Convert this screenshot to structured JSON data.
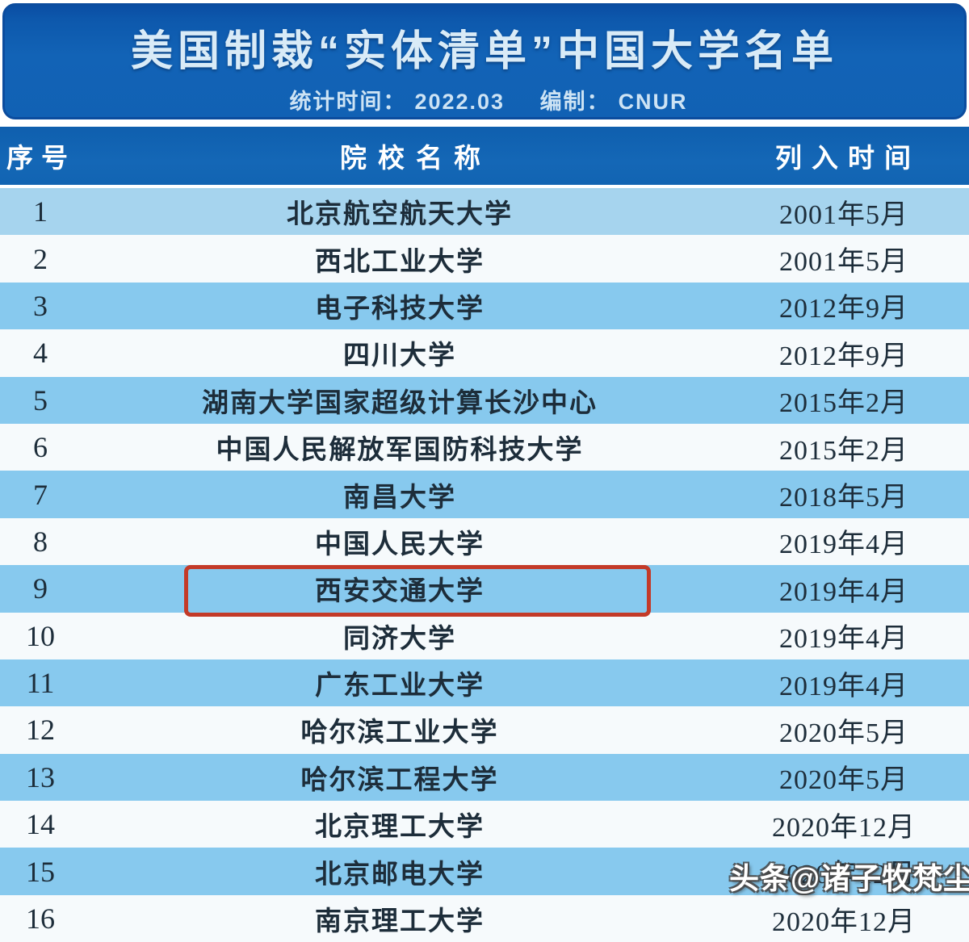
{
  "banner": {
    "title": "美国制裁“实体清单”中国大学名单",
    "stat_label": "统计时间：",
    "stat_value": "2022.03",
    "compile_label": "编制：",
    "compile_value": "CNUR"
  },
  "table": {
    "columns": {
      "index": "序号",
      "name": "院校名称",
      "date": "列入时间"
    },
    "rows": [
      {
        "index": "1",
        "name": "北京航空航天大学",
        "date": "2001年5月"
      },
      {
        "index": "2",
        "name": "西北工业大学",
        "date": "2001年5月"
      },
      {
        "index": "3",
        "name": "电子科技大学",
        "date": "2012年9月"
      },
      {
        "index": "4",
        "name": "四川大学",
        "date": "2012年9月"
      },
      {
        "index": "5",
        "name": "湖南大学国家超级计算长沙中心",
        "date": "2015年2月"
      },
      {
        "index": "6",
        "name": "中国人民解放军国防科技大学",
        "date": "2015年2月"
      },
      {
        "index": "7",
        "name": "南昌大学",
        "date": "2018年5月"
      },
      {
        "index": "8",
        "name": "中国人民大学",
        "date": "2019年4月"
      },
      {
        "index": "9",
        "name": "西安交通大学",
        "date": "2019年4月"
      },
      {
        "index": "10",
        "name": "同济大学",
        "date": "2019年4月"
      },
      {
        "index": "11",
        "name": "广东工业大学",
        "date": "2019年4月"
      },
      {
        "index": "12",
        "name": "哈尔滨工业大学",
        "date": "2020年5月"
      },
      {
        "index": "13",
        "name": "哈尔滨工程大学",
        "date": "2020年5月"
      },
      {
        "index": "14",
        "name": "北京理工大学",
        "date": "2020年12月"
      },
      {
        "index": "15",
        "name": "北京邮电大学",
        "date": "2020年12月"
      },
      {
        "index": "16",
        "name": "南京理工大学",
        "date": "2020年12月"
      }
    ],
    "highlighted_row": "9"
  },
  "watermark": {
    "text": "头条@诸子牧梵尘"
  },
  "colors": {
    "banner_blue": "#1161b4",
    "banner_border": "#0b4c9e",
    "header_blue": "#1467b6",
    "row_blue": "#87c9ee",
    "row_blue_first": "#a6d4ee",
    "row_white": "#f6fafc",
    "row_text": "#1d2d3a",
    "highlight_red": "#c33a28",
    "title_text": "#d9ebf7"
  },
  "chart_data": {
    "type": "table",
    "title": "美国制裁“实体清单”中国大学名单",
    "subtitle": "统计时间：2022.03 编制：CNUR",
    "columns": [
      "序号",
      "院校名称",
      "列入时间"
    ],
    "rows": [
      [
        "1",
        "北京航空航天大学",
        "2001年5月"
      ],
      [
        "2",
        "西北工业大学",
        "2001年5月"
      ],
      [
        "3",
        "电子科技大学",
        "2012年9月"
      ],
      [
        "4",
        "四川大学",
        "2012年9月"
      ],
      [
        "5",
        "湖南大学国家超级计算长沙中心",
        "2015年2月"
      ],
      [
        "6",
        "中国人民解放军国防科技大学",
        "2015年2月"
      ],
      [
        "7",
        "南昌大学",
        "2018年5月"
      ],
      [
        "8",
        "中国人民大学",
        "2019年4月"
      ],
      [
        "9",
        "西安交通大学",
        "2019年4月"
      ],
      [
        "10",
        "同济大学",
        "2019年4月"
      ],
      [
        "11",
        "广东工业大学",
        "2019年4月"
      ],
      [
        "12",
        "哈尔滨工业大学",
        "2020年5月"
      ],
      [
        "13",
        "哈尔滨工程大学",
        "2020年5月"
      ],
      [
        "14",
        "北京理工大学",
        "2020年12月"
      ],
      [
        "15",
        "北京邮电大学",
        "2020年12月"
      ],
      [
        "16",
        "南京理工大学",
        "2020年12月"
      ]
    ],
    "highlighted_row": "西安交通大学"
  }
}
